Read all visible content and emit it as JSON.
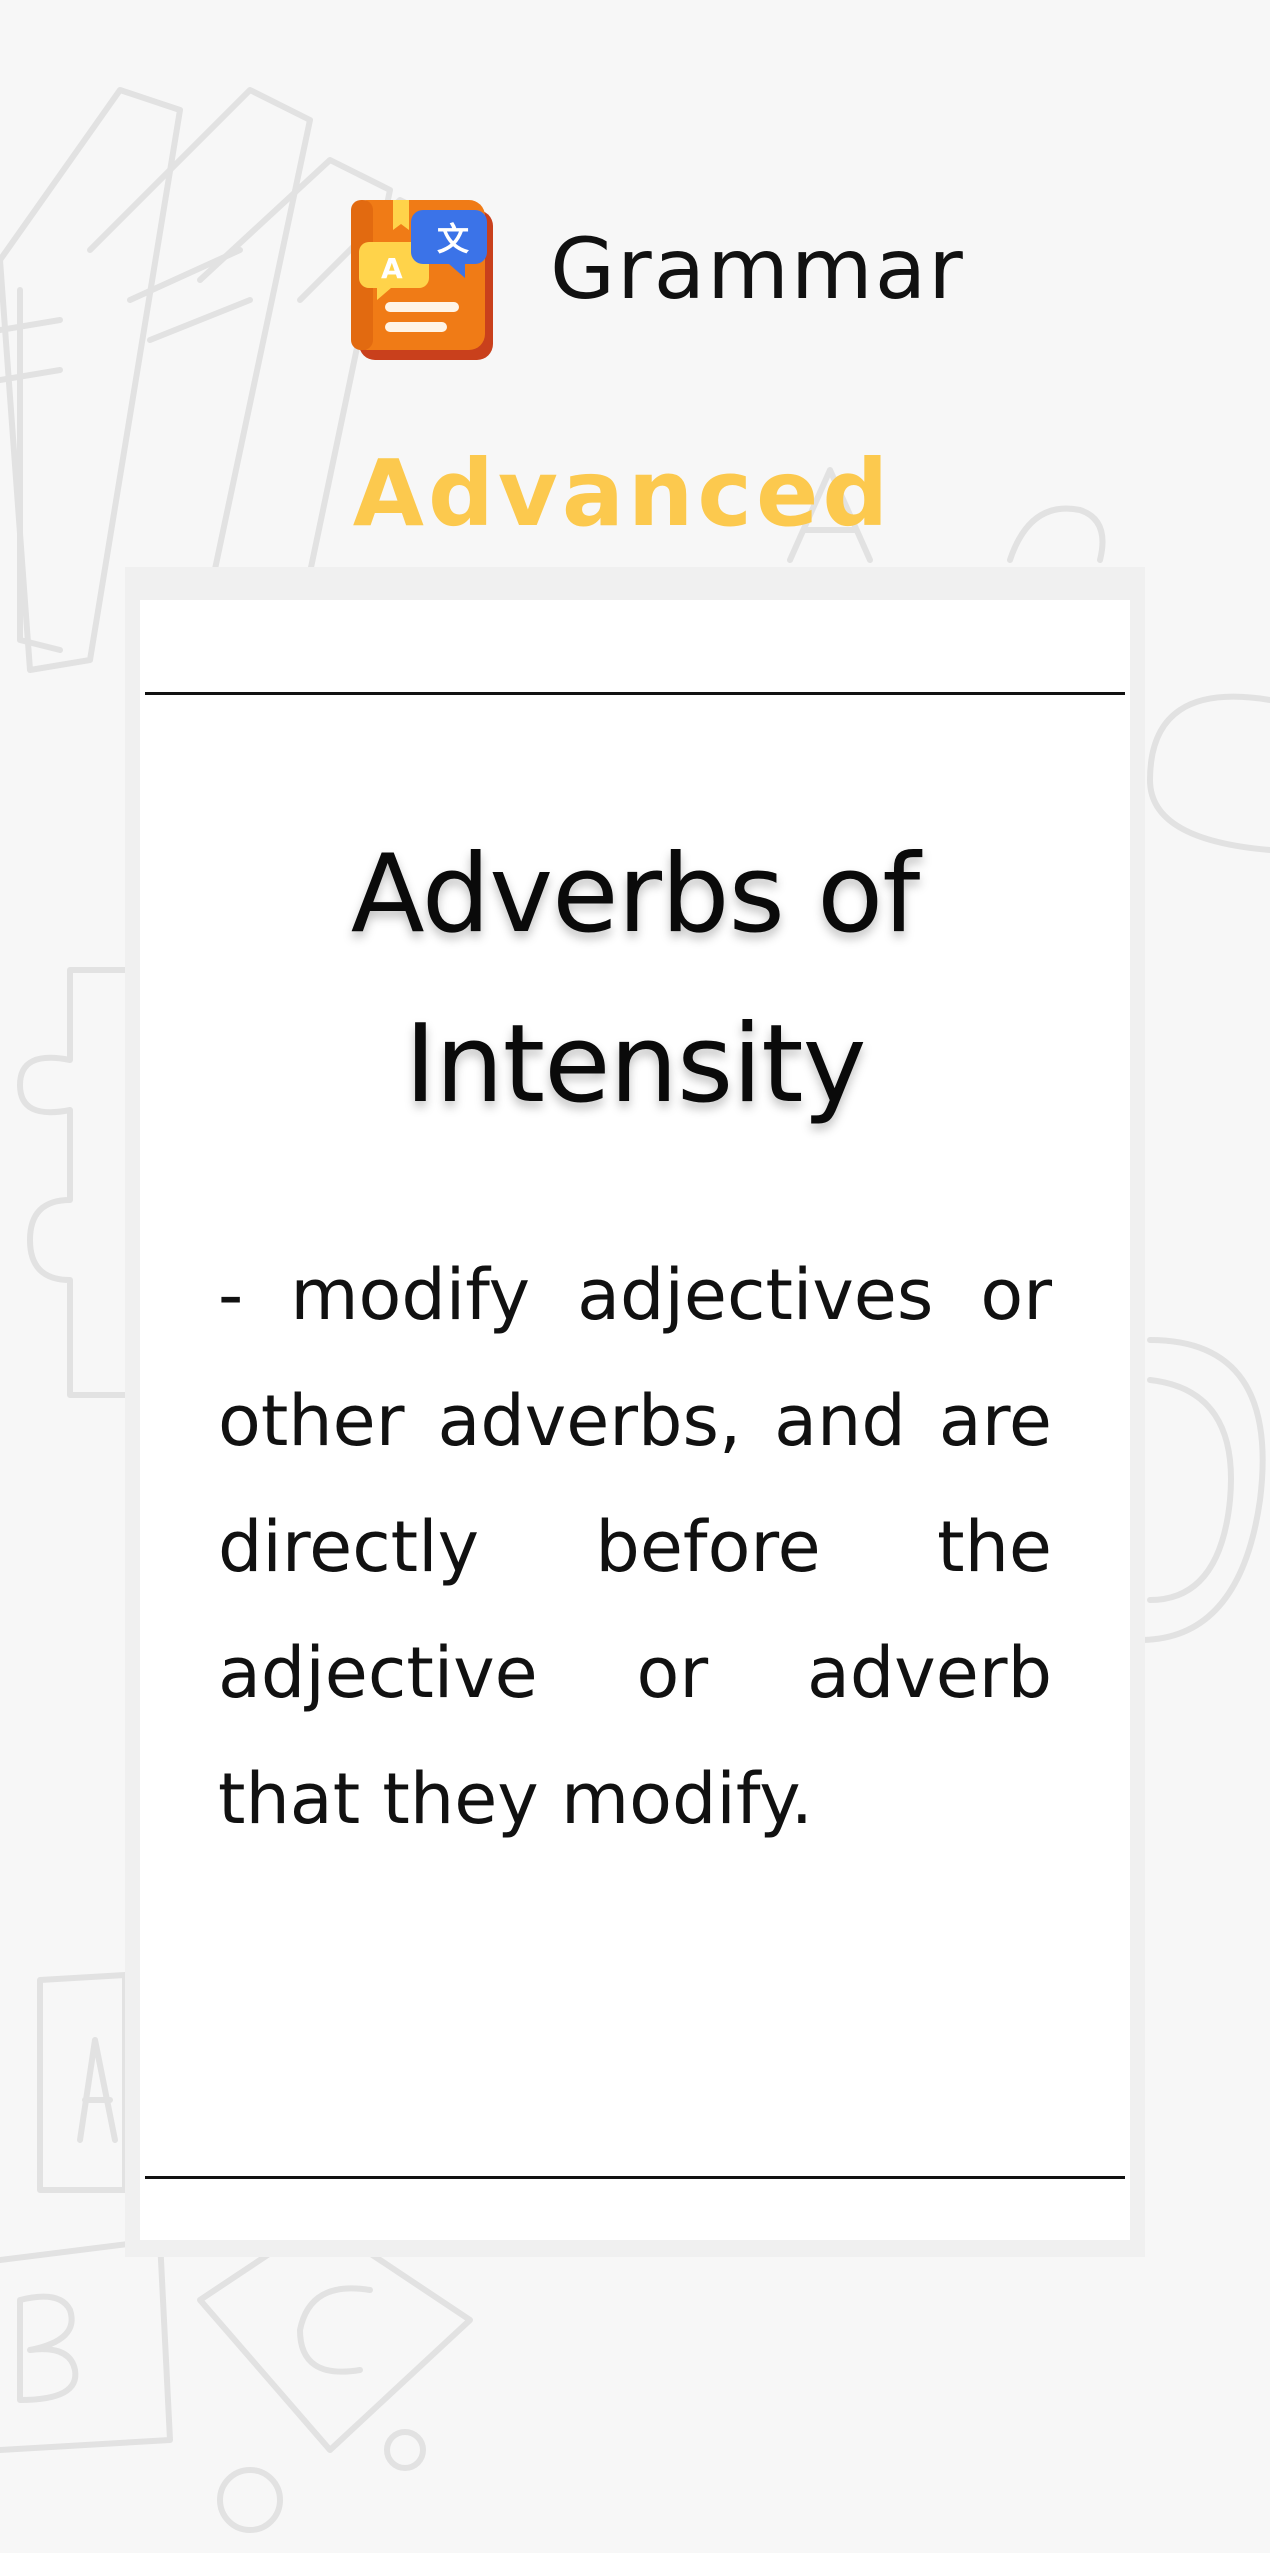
{
  "header": {
    "app_title": "Grammar",
    "icon": "translate-book-icon"
  },
  "level": {
    "label": "Advanced"
  },
  "card": {
    "heading": "Adverbs of Intensity",
    "body": " -  modify adjectives or other adverbs, and are directly before the adjective or adverb that they modify."
  },
  "colors": {
    "background": "#f7f7f7",
    "accent_yellow": "#fcc94e",
    "icon_orange": "#f07b16",
    "icon_blue": "#3b73e8",
    "text": "#111111"
  }
}
